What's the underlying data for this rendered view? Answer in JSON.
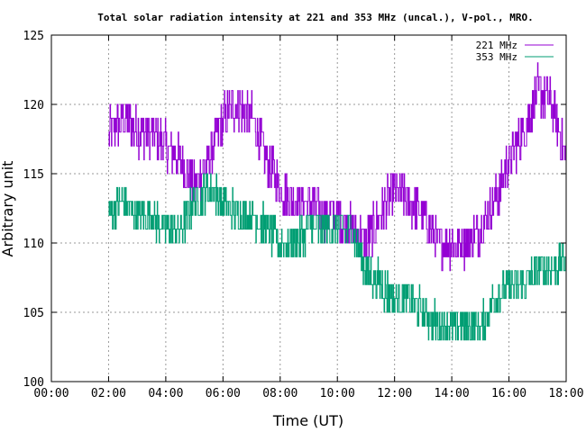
{
  "chart_data": {
    "type": "line",
    "title": "Total solar radiation intensity at 221 and 353 MHz (uncal.), V-pol., MRO.",
    "xlabel": "Time (UT)",
    "ylabel": "Arbitrary unit",
    "xlim": [
      "00:00",
      "18:00"
    ],
    "ylim": [
      100,
      125
    ],
    "x_ticks": [
      "00:00",
      "02:00",
      "04:00",
      "06:00",
      "08:00",
      "10:00",
      "12:00",
      "14:00",
      "16:00",
      "18:00"
    ],
    "y_ticks": [
      "100",
      "105",
      "110",
      "115",
      "120",
      "125"
    ],
    "grid": true,
    "legend_position": "top-right",
    "series": [
      {
        "name": "221 MHz",
        "color": "#9400d3",
        "x": [
          "02:00",
          "02:30",
          "03:00",
          "03:30",
          "04:00",
          "04:30",
          "05:00",
          "05:30",
          "06:00",
          "06:30",
          "07:00",
          "07:30",
          "08:00",
          "08:30",
          "09:00",
          "09:30",
          "10:00",
          "10:30",
          "11:00",
          "11:30",
          "12:00",
          "12:30",
          "13:00",
          "13:30",
          "14:00",
          "14:30",
          "15:00",
          "15:30",
          "16:00",
          "16:30",
          "17:00",
          "17:30",
          "18:00"
        ],
        "y": [
          118,
          119,
          118,
          118,
          117,
          116,
          114,
          116,
          119,
          120,
          119,
          116,
          114,
          113,
          113,
          112,
          112,
          111,
          110,
          112,
          114,
          113,
          112,
          110,
          110,
          110,
          111,
          113,
          116,
          118,
          121,
          120,
          116
        ],
        "noise": 1.6
      },
      {
        "name": "353 MHz",
        "color": "#009e73",
        "x": [
          "02:00",
          "02:30",
          "03:00",
          "03:30",
          "04:00",
          "04:30",
          "05:00",
          "05:30",
          "06:00",
          "06:30",
          "07:00",
          "07:30",
          "08:00",
          "08:30",
          "09:00",
          "09:30",
          "10:00",
          "10:30",
          "11:00",
          "11:30",
          "12:00",
          "12:30",
          "13:00",
          "13:30",
          "14:00",
          "14:30",
          "15:00",
          "15:30",
          "16:00",
          "16:30",
          "17:00",
          "17:30",
          "18:00"
        ],
        "y": [
          112,
          113,
          112,
          112,
          111,
          111,
          113,
          114,
          113,
          112,
          112,
          111,
          110,
          110,
          111,
          111,
          111,
          111,
          108,
          107,
          106,
          106,
          105,
          104,
          104,
          104,
          104,
          106,
          107,
          107,
          108,
          108,
          109
        ],
        "noise": 1.4
      }
    ]
  }
}
